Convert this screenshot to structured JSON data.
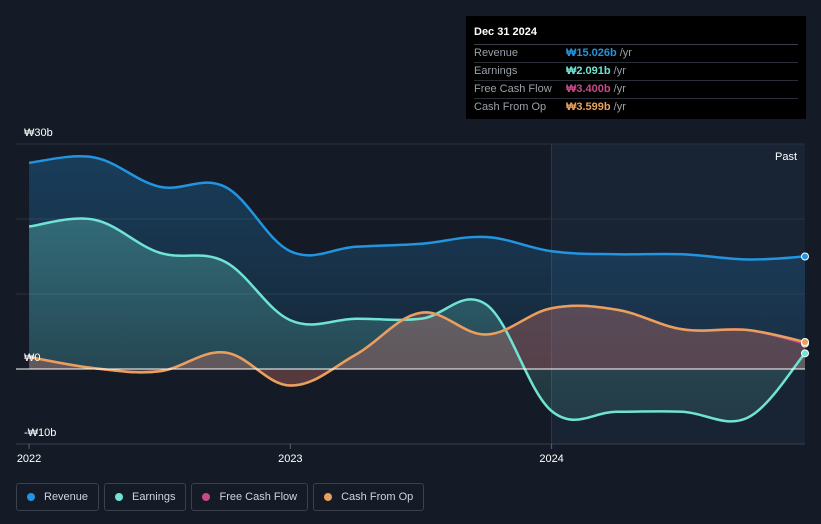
{
  "chart_data": {
    "type": "area",
    "currency": "₩",
    "y_ticks": [
      {
        "value": 30,
        "label": "₩30b"
      },
      {
        "value": 0,
        "label": "₩0"
      },
      {
        "value": -10,
        "label": "-₩10b"
      }
    ],
    "ylim": [
      -10,
      30
    ],
    "xlim": [
      2021.95,
      2024.97
    ],
    "x_ticks": [
      {
        "value": 2022,
        "label": "2022"
      },
      {
        "value": 2023,
        "label": "2023"
      },
      {
        "value": 2024,
        "label": "2024"
      }
    ],
    "past_label": "Past",
    "past_start": 2024.0,
    "legend_position": "bottom-left",
    "grid": true,
    "series": [
      {
        "name": "Revenue",
        "color": "#2394df",
        "points": [
          [
            2022.0,
            27.5
          ],
          [
            2022.25,
            28.2
          ],
          [
            2022.5,
            24.3
          ],
          [
            2022.75,
            24.3
          ],
          [
            2023.0,
            15.7
          ],
          [
            2023.25,
            16.3
          ],
          [
            2023.5,
            16.7
          ],
          [
            2023.75,
            17.6
          ],
          [
            2024.0,
            15.7
          ],
          [
            2024.25,
            15.3
          ],
          [
            2024.5,
            15.3
          ],
          [
            2024.75,
            14.6
          ],
          [
            2024.97,
            15.0
          ]
        ]
      },
      {
        "name": "Earnings",
        "color": "#6fe4d4",
        "points": [
          [
            2022.0,
            19.0
          ],
          [
            2022.25,
            19.9
          ],
          [
            2022.5,
            15.5
          ],
          [
            2022.75,
            14.3
          ],
          [
            2023.0,
            6.5
          ],
          [
            2023.25,
            6.7
          ],
          [
            2023.5,
            6.7
          ],
          [
            2023.75,
            8.6
          ],
          [
            2024.0,
            -5.6
          ],
          [
            2024.25,
            -5.7
          ],
          [
            2024.5,
            -5.7
          ],
          [
            2024.75,
            -6.5
          ],
          [
            2024.97,
            2.091
          ]
        ]
      },
      {
        "name": "Free Cash Flow",
        "color": "#c64a8a",
        "points": [
          [
            2022.0,
            1.6
          ],
          [
            2022.25,
            0.1
          ],
          [
            2022.5,
            -0.3
          ],
          [
            2022.75,
            2.2
          ],
          [
            2023.0,
            -2.2
          ],
          [
            2023.25,
            1.9
          ],
          [
            2023.5,
            7.5
          ],
          [
            2023.75,
            4.6
          ],
          [
            2024.0,
            8.1
          ],
          [
            2024.25,
            7.9
          ],
          [
            2024.5,
            5.3
          ],
          [
            2024.75,
            5.2
          ],
          [
            2024.97,
            3.4
          ]
        ]
      },
      {
        "name": "Cash From Op",
        "color": "#e7a15a",
        "points": [
          [
            2022.0,
            1.6
          ],
          [
            2022.25,
            0.1
          ],
          [
            2022.5,
            -0.3
          ],
          [
            2022.75,
            2.2
          ],
          [
            2023.0,
            -2.2
          ],
          [
            2023.25,
            1.9
          ],
          [
            2023.5,
            7.5
          ],
          [
            2023.75,
            4.6
          ],
          [
            2024.0,
            8.1
          ],
          [
            2024.25,
            7.9
          ],
          [
            2024.5,
            5.3
          ],
          [
            2024.75,
            5.2
          ],
          [
            2024.97,
            3.599
          ]
        ]
      }
    ]
  },
  "tooltip": {
    "date": "Dec 31 2024",
    "rows": [
      {
        "label": "Revenue",
        "value": "₩15.026b",
        "unit": "/yr",
        "color": "#2394df"
      },
      {
        "label": "Earnings",
        "value": "₩2.091b",
        "unit": "/yr",
        "color": "#6fe4d4"
      },
      {
        "label": "Free Cash Flow",
        "value": "₩3.400b",
        "unit": "/yr",
        "color": "#c64a8a"
      },
      {
        "label": "Cash From Op",
        "value": "₩3.599b",
        "unit": "/yr",
        "color": "#e7a15a"
      }
    ]
  },
  "legend": [
    {
      "label": "Revenue",
      "color": "#2394df"
    },
    {
      "label": "Earnings",
      "color": "#6fe4d4"
    },
    {
      "label": "Free Cash Flow",
      "color": "#c64a8a"
    },
    {
      "label": "Cash From Op",
      "color": "#e7a15a"
    }
  ]
}
